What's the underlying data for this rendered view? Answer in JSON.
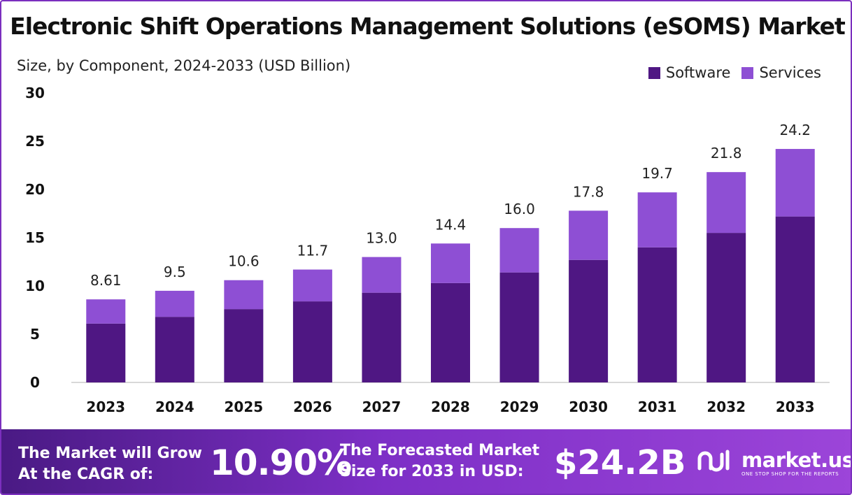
{
  "title": "Electronic Shift Operations Management Solutions (eSOMS) Market",
  "subtitle": "Size, by Component, 2024-2033 (USD Billion)",
  "colors": {
    "software": "#4f1783",
    "services": "#8e4fd4",
    "axis": "#cccccc",
    "brand": "#7b2fbe"
  },
  "chart_data": {
    "type": "bar",
    "stacked": true,
    "title": "Electronic Shift Operations Management Solutions (eSOMS) Market",
    "subtitle": "Size, by Component, 2024-2033 (USD Billion)",
    "categories": [
      "2023",
      "2024",
      "2025",
      "2026",
      "2027",
      "2028",
      "2029",
      "2030",
      "2031",
      "2032",
      "2033"
    ],
    "series": [
      {
        "name": "Software",
        "values": [
          6.1,
          6.8,
          7.6,
          8.4,
          9.3,
          10.3,
          11.4,
          12.7,
          14.0,
          15.5,
          17.2
        ]
      },
      {
        "name": "Services",
        "values": [
          2.51,
          2.7,
          3.0,
          3.3,
          3.7,
          4.1,
          4.6,
          5.1,
          5.7,
          6.3,
          7.0
        ]
      }
    ],
    "totals_labels": [
      "8.61",
      "9.5",
      "10.6",
      "11.7",
      "13.0",
      "14.4",
      "16.0",
      "17.8",
      "19.7",
      "21.8",
      "24.2"
    ],
    "y_ticks": [
      "0",
      "5",
      "10",
      "15",
      "20",
      "25",
      "30"
    ],
    "ylim": [
      0,
      30
    ],
    "xlabel": "",
    "ylabel": "",
    "grid": false,
    "legend_position": "top-right"
  },
  "footer": {
    "cagr_label": "The Market will Grow At the CAGR of:",
    "cagr_value": "10.90%",
    "size_label": "The Forecasted Market Size for 2033 in USD:",
    "size_value": "$24.2B",
    "brand": "market.us",
    "brand_tagline": "ONE STOP SHOP FOR THE REPORTS",
    "brand_icon": "market-us-logo-icon"
  }
}
